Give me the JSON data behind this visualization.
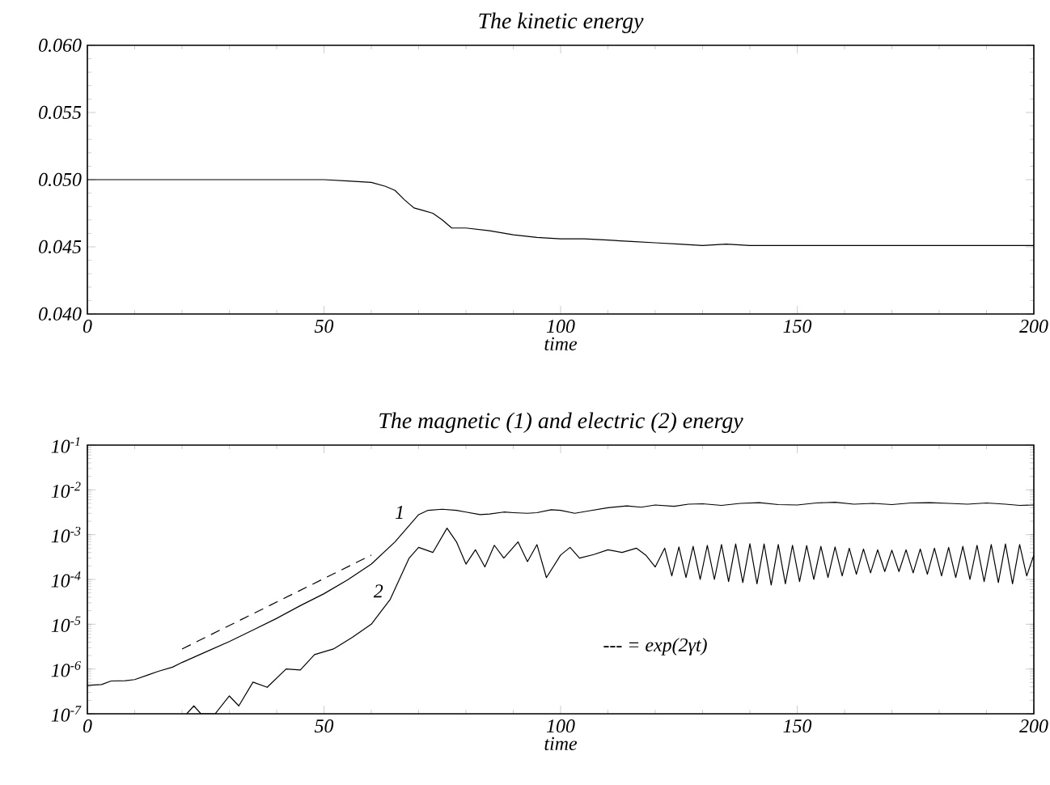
{
  "chart_data": [
    {
      "type": "line",
      "title": "The kinetic energy",
      "xlabel": "time",
      "xlim": [
        0,
        200
      ],
      "xticks": [
        0,
        50,
        100,
        150,
        200
      ],
      "ylim": [
        0.04,
        0.06
      ],
      "yticks": [
        {
          "value": 0.04,
          "label": "0.040"
        },
        {
          "value": 0.045,
          "label": "0.045"
        },
        {
          "value": 0.05,
          "label": "0.050"
        },
        {
          "value": 0.055,
          "label": "0.055"
        },
        {
          "value": 0.06,
          "label": "0.060"
        }
      ],
      "series": [
        {
          "color": "#000000",
          "x": [
            0,
            25,
            50,
            55,
            60,
            63,
            65,
            67,
            69,
            71,
            73,
            75,
            77,
            80,
            85,
            90,
            95,
            100,
            105,
            110,
            115,
            120,
            125,
            130,
            135,
            140,
            150,
            160,
            170,
            180,
            190,
            200
          ],
          "values": [
            0.05,
            0.05,
            0.05,
            0.0499,
            0.0498,
            0.0495,
            0.0492,
            0.0485,
            0.0479,
            0.0477,
            0.0475,
            0.047,
            0.0464,
            0.0464,
            0.0462,
            0.0459,
            0.0457,
            0.0456,
            0.0456,
            0.0455,
            0.0454,
            0.0453,
            0.0452,
            0.0451,
            0.0452,
            0.0451,
            0.0451,
            0.0451,
            0.0451,
            0.0451,
            0.0451,
            0.0451
          ]
        }
      ]
    },
    {
      "type": "line",
      "title": "The magnetic (1) and electric (2)  energy",
      "xlabel": "time",
      "log": "y",
      "xlim": [
        0,
        200
      ],
      "xticks": [
        0,
        50,
        100,
        150,
        200
      ],
      "ylim": [
        1e-07,
        0.1
      ],
      "yticks": [
        {
          "value": 1e-07,
          "label": "10$^{-7}$"
        },
        {
          "value": 1e-06,
          "label": "10$^{-6}$"
        },
        {
          "value": 1e-05,
          "label": "10$^{-5}$"
        },
        {
          "value": 0.0001,
          "label": "10$^{-4}$"
        },
        {
          "value": 0.001,
          "label": "10$^{-3}$"
        },
        {
          "value": 0.01,
          "label": "10$^{-2}$"
        },
        {
          "value": 0.1,
          "label": "10$^{-1}$"
        }
      ],
      "series": [
        {
          "color": "#000000",
          "x": [
            0,
            3,
            5,
            8,
            10,
            13,
            15,
            18,
            20,
            25,
            30,
            35,
            40,
            45,
            50,
            55,
            60,
            65,
            68,
            70,
            72,
            75,
            78,
            80,
            83,
            85,
            88,
            90,
            93,
            95,
            98,
            100,
            103,
            106,
            110,
            114,
            117,
            120,
            124,
            127,
            130,
            134,
            138,
            142,
            146,
            150,
            154,
            158,
            162,
            166,
            170,
            174,
            178,
            182,
            186,
            190,
            194,
            197,
            200
          ],
          "values": [
            4.3e-07,
            4.5e-07,
            5.4e-07,
            5.5e-07,
            5.8e-07,
            7.5e-07,
            8.9e-07,
            1.1e-06,
            1.4e-06,
            2.4e-06,
            4.1e-06,
            7.4e-06,
            1.35e-05,
            2.6e-05,
            4.8e-05,
            9.8e-05,
            0.00022,
            0.00069,
            0.0016,
            0.0028,
            0.0035,
            0.0037,
            0.0035,
            0.0032,
            0.0028,
            0.0029,
            0.0032,
            0.0031,
            0.003,
            0.0031,
            0.0036,
            0.0035,
            0.003,
            0.0034,
            0.004,
            0.0044,
            0.0041,
            0.0046,
            0.0043,
            0.0048,
            0.0049,
            0.0045,
            0.005,
            0.0052,
            0.0047,
            0.0046,
            0.0051,
            0.0053,
            0.0048,
            0.005,
            0.0047,
            0.0051,
            0.0052,
            0.005,
            0.0048,
            0.0051,
            0.0048,
            0.0045,
            0.0046
          ]
        },
        {
          "color": "#000000",
          "x": [
            21,
            22.5,
            24,
            27,
            30,
            32,
            35,
            38,
            42,
            45,
            48,
            52,
            56,
            60,
            64,
            68,
            70,
            73,
            76,
            78,
            80,
            82,
            84,
            86,
            88,
            91,
            93,
            95,
            97,
            100,
            102,
            104,
            107,
            110,
            113,
            116,
            118,
            120,
            122,
            123.5,
            125,
            126.5,
            128,
            129.5,
            131,
            132.5,
            134,
            135.5,
            137,
            138.5,
            140,
            141.5,
            143,
            144.5,
            146,
            147.5,
            149,
            150.5,
            152,
            153.5,
            155,
            156.5,
            158,
            159.5,
            161,
            162.5,
            164,
            165.5,
            167,
            168.5,
            170,
            171.5,
            173,
            174.5,
            176,
            177.5,
            179,
            180.5,
            182,
            183.5,
            185,
            186.5,
            188,
            189.5,
            191,
            192.5,
            194,
            195.5,
            197,
            198.5,
            200
          ],
          "values": [
            1e-07,
            1.5e-07,
            1e-07,
            1e-07,
            2.5e-07,
            1.5e-07,
            5.1e-07,
            3.9e-07,
            1e-06,
            9.5e-07,
            2.1e-06,
            2.8e-06,
            5.1e-06,
            1e-05,
            3.6e-05,
            0.0003,
            0.00052,
            0.0004,
            0.0014,
            0.00069,
            0.00022,
            0.00046,
            0.00019,
            0.00058,
            0.0003,
            0.00069,
            0.00025,
            0.0006,
            0.00011,
            0.00035,
            0.00052,
            0.0003,
            0.00036,
            0.00046,
            0.0004,
            0.0005,
            0.00035,
            0.00019,
            0.0005,
            0.00012,
            0.00053,
            0.00011,
            0.00055,
            0.0001,
            0.00058,
            0.0001,
            0.0006,
            9e-05,
            0.00062,
            8.5e-05,
            0.00063,
            8e-05,
            0.00062,
            7.5e-05,
            0.0006,
            8e-05,
            0.00058,
            9e-05,
            0.00057,
            0.0001,
            0.00055,
            0.00011,
            0.00053,
            0.00012,
            0.0005,
            0.00013,
            0.00048,
            0.00014,
            0.00046,
            0.00015,
            0.00045,
            0.00015,
            0.00046,
            0.00014,
            0.00048,
            0.00013,
            0.0005,
            0.00012,
            0.00052,
            0.00011,
            0.00055,
            0.0001,
            0.00058,
            9e-05,
            0.0006,
            8.5e-05,
            0.00062,
            8e-05,
            0.0006,
            0.00012,
            0.00035
          ]
        },
        {
          "color": "#000000",
          "line_style": "dashed",
          "x": [
            20,
            60
          ],
          "values": [
            2.8e-06,
            0.00035
          ]
        }
      ],
      "annotations": [
        "1",
        "2",
        "--- = exp(2γt)"
      ]
    }
  ]
}
